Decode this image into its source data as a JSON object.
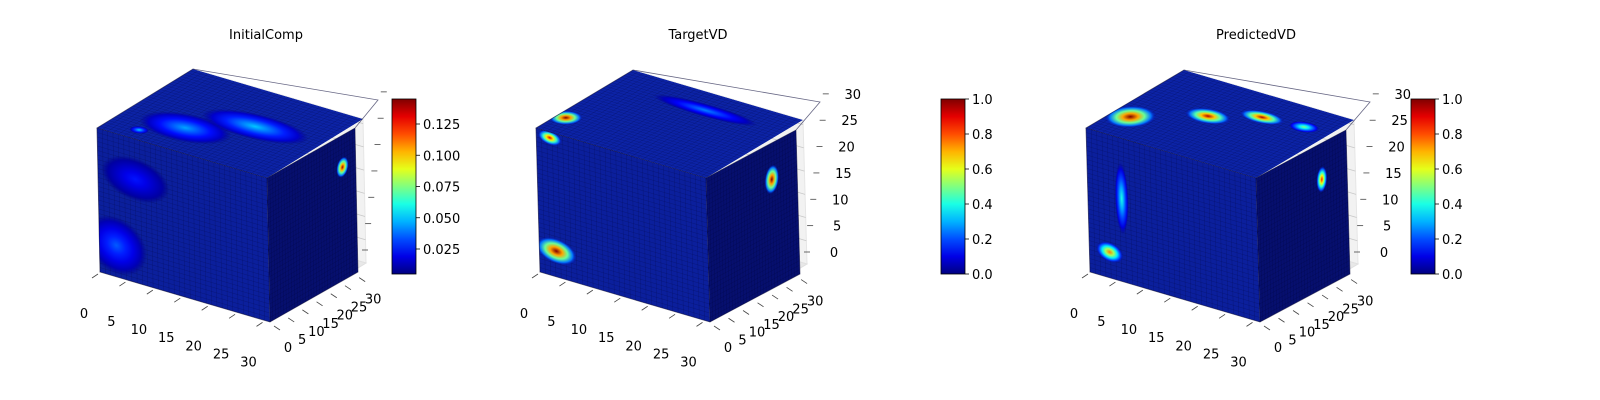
{
  "chart_data": [
    {
      "type": "heatmap",
      "title": "InitialComp",
      "x_ticks": [
        "0",
        "5",
        "10",
        "15",
        "20",
        "25",
        "30"
      ],
      "y_ticks": [
        "0",
        "5",
        "10",
        "15",
        "20",
        "25",
        "30"
      ],
      "z_ticks": [],
      "xlim": [
        0,
        31
      ],
      "ylim": [
        0,
        31
      ],
      "zlim": [
        0,
        31
      ],
      "colormap": "jet",
      "colorbar": {
        "ticks": [
          "0.025",
          "0.050",
          "0.075",
          "0.100",
          "0.125"
        ],
        "tick_values": [
          0.025,
          0.05,
          0.075,
          0.1,
          0.125
        ],
        "range": [
          0.005,
          0.145
        ]
      },
      "hotspots": [
        {
          "face": "top",
          "u": 0.18,
          "v": 0.12,
          "ru": 0.05,
          "rv": 0.05,
          "value": 0.05
        },
        {
          "face": "top",
          "u": 0.35,
          "v": 0.3,
          "ru": 0.25,
          "rv": 0.18,
          "value": 0.045
        },
        {
          "face": "top",
          "u": 0.62,
          "v": 0.55,
          "ru": 0.3,
          "rv": 0.16,
          "value": 0.05
        },
        {
          "face": "front",
          "u": 0.02,
          "v": 0.2,
          "ru": 0.07,
          "rv": 0.08,
          "value": 0.07
        },
        {
          "face": "front",
          "u": 0.1,
          "v": 0.22,
          "ru": 0.18,
          "rv": 0.2,
          "value": 0.035
        },
        {
          "face": "front",
          "u": 0.22,
          "v": 0.72,
          "ru": 0.2,
          "rv": 0.15,
          "value": 0.025
        },
        {
          "face": "right",
          "u": 0.85,
          "v": 0.78,
          "ru": 0.07,
          "rv": 0.07,
          "value": 0.14
        }
      ]
    },
    {
      "type": "heatmap",
      "title": "TargetVD",
      "x_ticks": [
        "0",
        "5",
        "10",
        "15",
        "20",
        "25",
        "30"
      ],
      "y_ticks": [
        "0",
        "5",
        "10",
        "15",
        "20",
        "25",
        "30"
      ],
      "z_ticks": [
        "0",
        "5",
        "10",
        "15",
        "20",
        "25",
        "30"
      ],
      "xlim": [
        0,
        31
      ],
      "ylim": [
        0,
        31
      ],
      "zlim": [
        0,
        31
      ],
      "colormap": "jet",
      "colorbar": {
        "ticks": [
          "0.0",
          "0.2",
          "0.4",
          "0.6",
          "0.8",
          "1.0"
        ],
        "tick_values": [
          0,
          0.2,
          0.4,
          0.6,
          0.8,
          1.0
        ],
        "range": [
          0,
          1
        ]
      },
      "hotspots": [
        {
          "face": "top",
          "u": 0.05,
          "v": 0.22,
          "ru": 0.08,
          "rv": 0.1,
          "value": 1.0
        },
        {
          "face": "front",
          "u": 0.08,
          "v": 0.96,
          "ru": 0.07,
          "rv": 0.05,
          "value": 0.9
        },
        {
          "face": "top",
          "u": 0.55,
          "v": 0.78,
          "ru": 0.3,
          "rv": 0.08,
          "value": 0.25
        },
        {
          "face": "front",
          "u": 0.1,
          "v": 0.18,
          "ru": 0.12,
          "rv": 0.09,
          "value": 1.0
        },
        {
          "face": "right",
          "u": 0.72,
          "v": 0.75,
          "ru": 0.08,
          "rv": 0.1,
          "value": 1.0
        }
      ]
    },
    {
      "type": "heatmap",
      "title": "PredictedVD",
      "x_ticks": [
        "0",
        "5",
        "10",
        "15",
        "20",
        "25",
        "30"
      ],
      "y_ticks": [
        "0",
        "5",
        "10",
        "15",
        "20",
        "25",
        "30"
      ],
      "z_ticks": [
        "0",
        "5",
        "10",
        "15",
        "20",
        "25",
        "30"
      ],
      "xlim": [
        0,
        31
      ],
      "ylim": [
        0,
        31
      ],
      "zlim": [
        0,
        31
      ],
      "colormap": "jet",
      "colorbar": {
        "ticks": [
          "0.0",
          "0.2",
          "0.4",
          "0.6",
          "0.8",
          "1.0"
        ],
        "tick_values": [
          0,
          0.2,
          0.4,
          0.6,
          0.8,
          1.0
        ],
        "range": [
          0,
          1
        ]
      },
      "hotspots": [
        {
          "face": "top",
          "u": 0.1,
          "v": 0.28,
          "ru": 0.12,
          "rv": 0.16,
          "value": 1.0
        },
        {
          "face": "top",
          "u": 0.4,
          "v": 0.55,
          "ru": 0.12,
          "rv": 0.1,
          "value": 0.95
        },
        {
          "face": "top",
          "u": 0.62,
          "v": 0.72,
          "ru": 0.12,
          "rv": 0.08,
          "value": 0.95
        },
        {
          "face": "top",
          "u": 0.85,
          "v": 0.75,
          "ru": 0.08,
          "rv": 0.07,
          "value": 0.5
        },
        {
          "face": "front",
          "u": 0.2,
          "v": 0.58,
          "ru": 0.04,
          "rv": 0.25,
          "value": 0.4
        },
        {
          "face": "front",
          "u": 0.12,
          "v": 0.18,
          "ru": 0.08,
          "rv": 0.07,
          "value": 0.75
        },
        {
          "face": "right",
          "u": 0.72,
          "v": 0.75,
          "ru": 0.06,
          "rv": 0.09,
          "value": 0.85
        }
      ]
    }
  ],
  "figure": {
    "background": "#ffffff",
    "pane_color": "#f2f2f2",
    "grid_color": "#c8c8c8",
    "text_color": "#000000"
  }
}
